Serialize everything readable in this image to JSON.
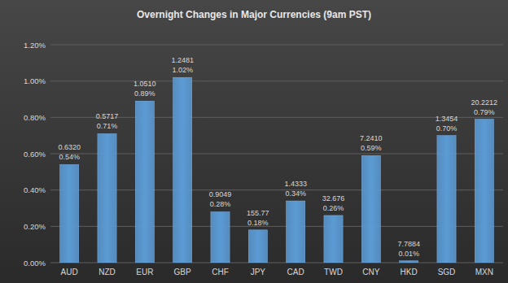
{
  "chart_data": {
    "type": "bar",
    "title": "Overnight Changes in Major Currencies (9am PST)",
    "categories": [
      "AUD",
      "NZD",
      "EUR",
      "GBP",
      "CHF",
      "JPY",
      "CAD",
      "TWD",
      "CNY",
      "HKD",
      "SGD",
      "MXN"
    ],
    "values": [
      0.54,
      0.71,
      0.89,
      1.02,
      0.28,
      0.18,
      0.34,
      0.26,
      0.59,
      0.01,
      0.7,
      0.79
    ],
    "value_labels": [
      "0.54%",
      "0.71%",
      "0.89%",
      "1.02%",
      "0.28%",
      "0.18%",
      "0.34%",
      "0.26%",
      "0.59%",
      "0.01%",
      "0.70%",
      "0.79%"
    ],
    "annotations": [
      "0.6320",
      "0.5717",
      "1.0510",
      "1.2481",
      "0.9049",
      "155.77",
      "1.4333",
      "32.676",
      "7.2410",
      "7.7884",
      "1.3454",
      "20.2212"
    ],
    "color": "#5b9bd5",
    "ylim": [
      0,
      1.2
    ],
    "yticks": [
      {
        "value": 0,
        "label": "0.00%"
      },
      {
        "value": 0.2,
        "label": "0.20%"
      },
      {
        "value": 0.4,
        "label": "0.40%"
      },
      {
        "value": 0.6,
        "label": "0.60%"
      },
      {
        "value": 0.8,
        "label": "0.80%"
      },
      {
        "value": 1.0,
        "label": "1.00%"
      },
      {
        "value": 1.2,
        "label": "1.20%"
      }
    ],
    "grid": true,
    "data_labels": true
  }
}
